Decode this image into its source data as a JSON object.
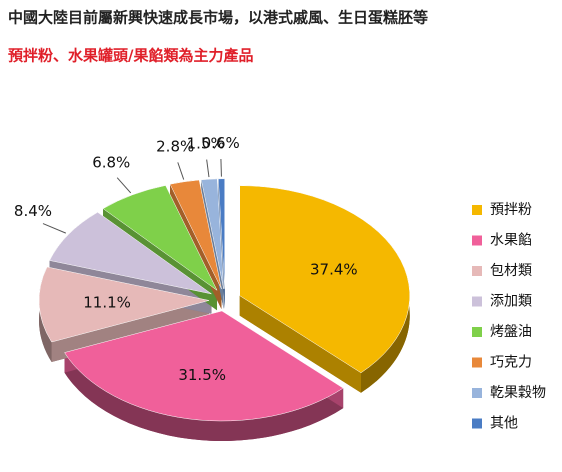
{
  "chart_data": {
    "type": "pie",
    "title": "中國大陸目前屬新興快速成長市場，以港式戚風、生日蛋糕胚等",
    "subtitle": "預拌粉、水果罐頭/果餡類為主力產品",
    "categories": [
      "預拌粉",
      "水果餡",
      "包材類",
      "添加類",
      "烤盤油",
      "巧克力",
      "乾果穀物",
      "其他"
    ],
    "values": [
      37.4,
      31.5,
      11.1,
      8.4,
      6.8,
      2.8,
      1.5,
      0.6
    ],
    "value_labels": [
      "37.4%",
      "31.5%",
      "11.1%",
      "8.4%",
      "6.8%",
      "2.8%",
      "1.5%",
      "0.6%"
    ],
    "colors": [
      "#f5b800",
      "#f0609a",
      "#e6b9b8",
      "#ccc1da",
      "#7fd04a",
      "#e8883a",
      "#98b4dc",
      "#4a7cc4"
    ],
    "legend": "right"
  }
}
